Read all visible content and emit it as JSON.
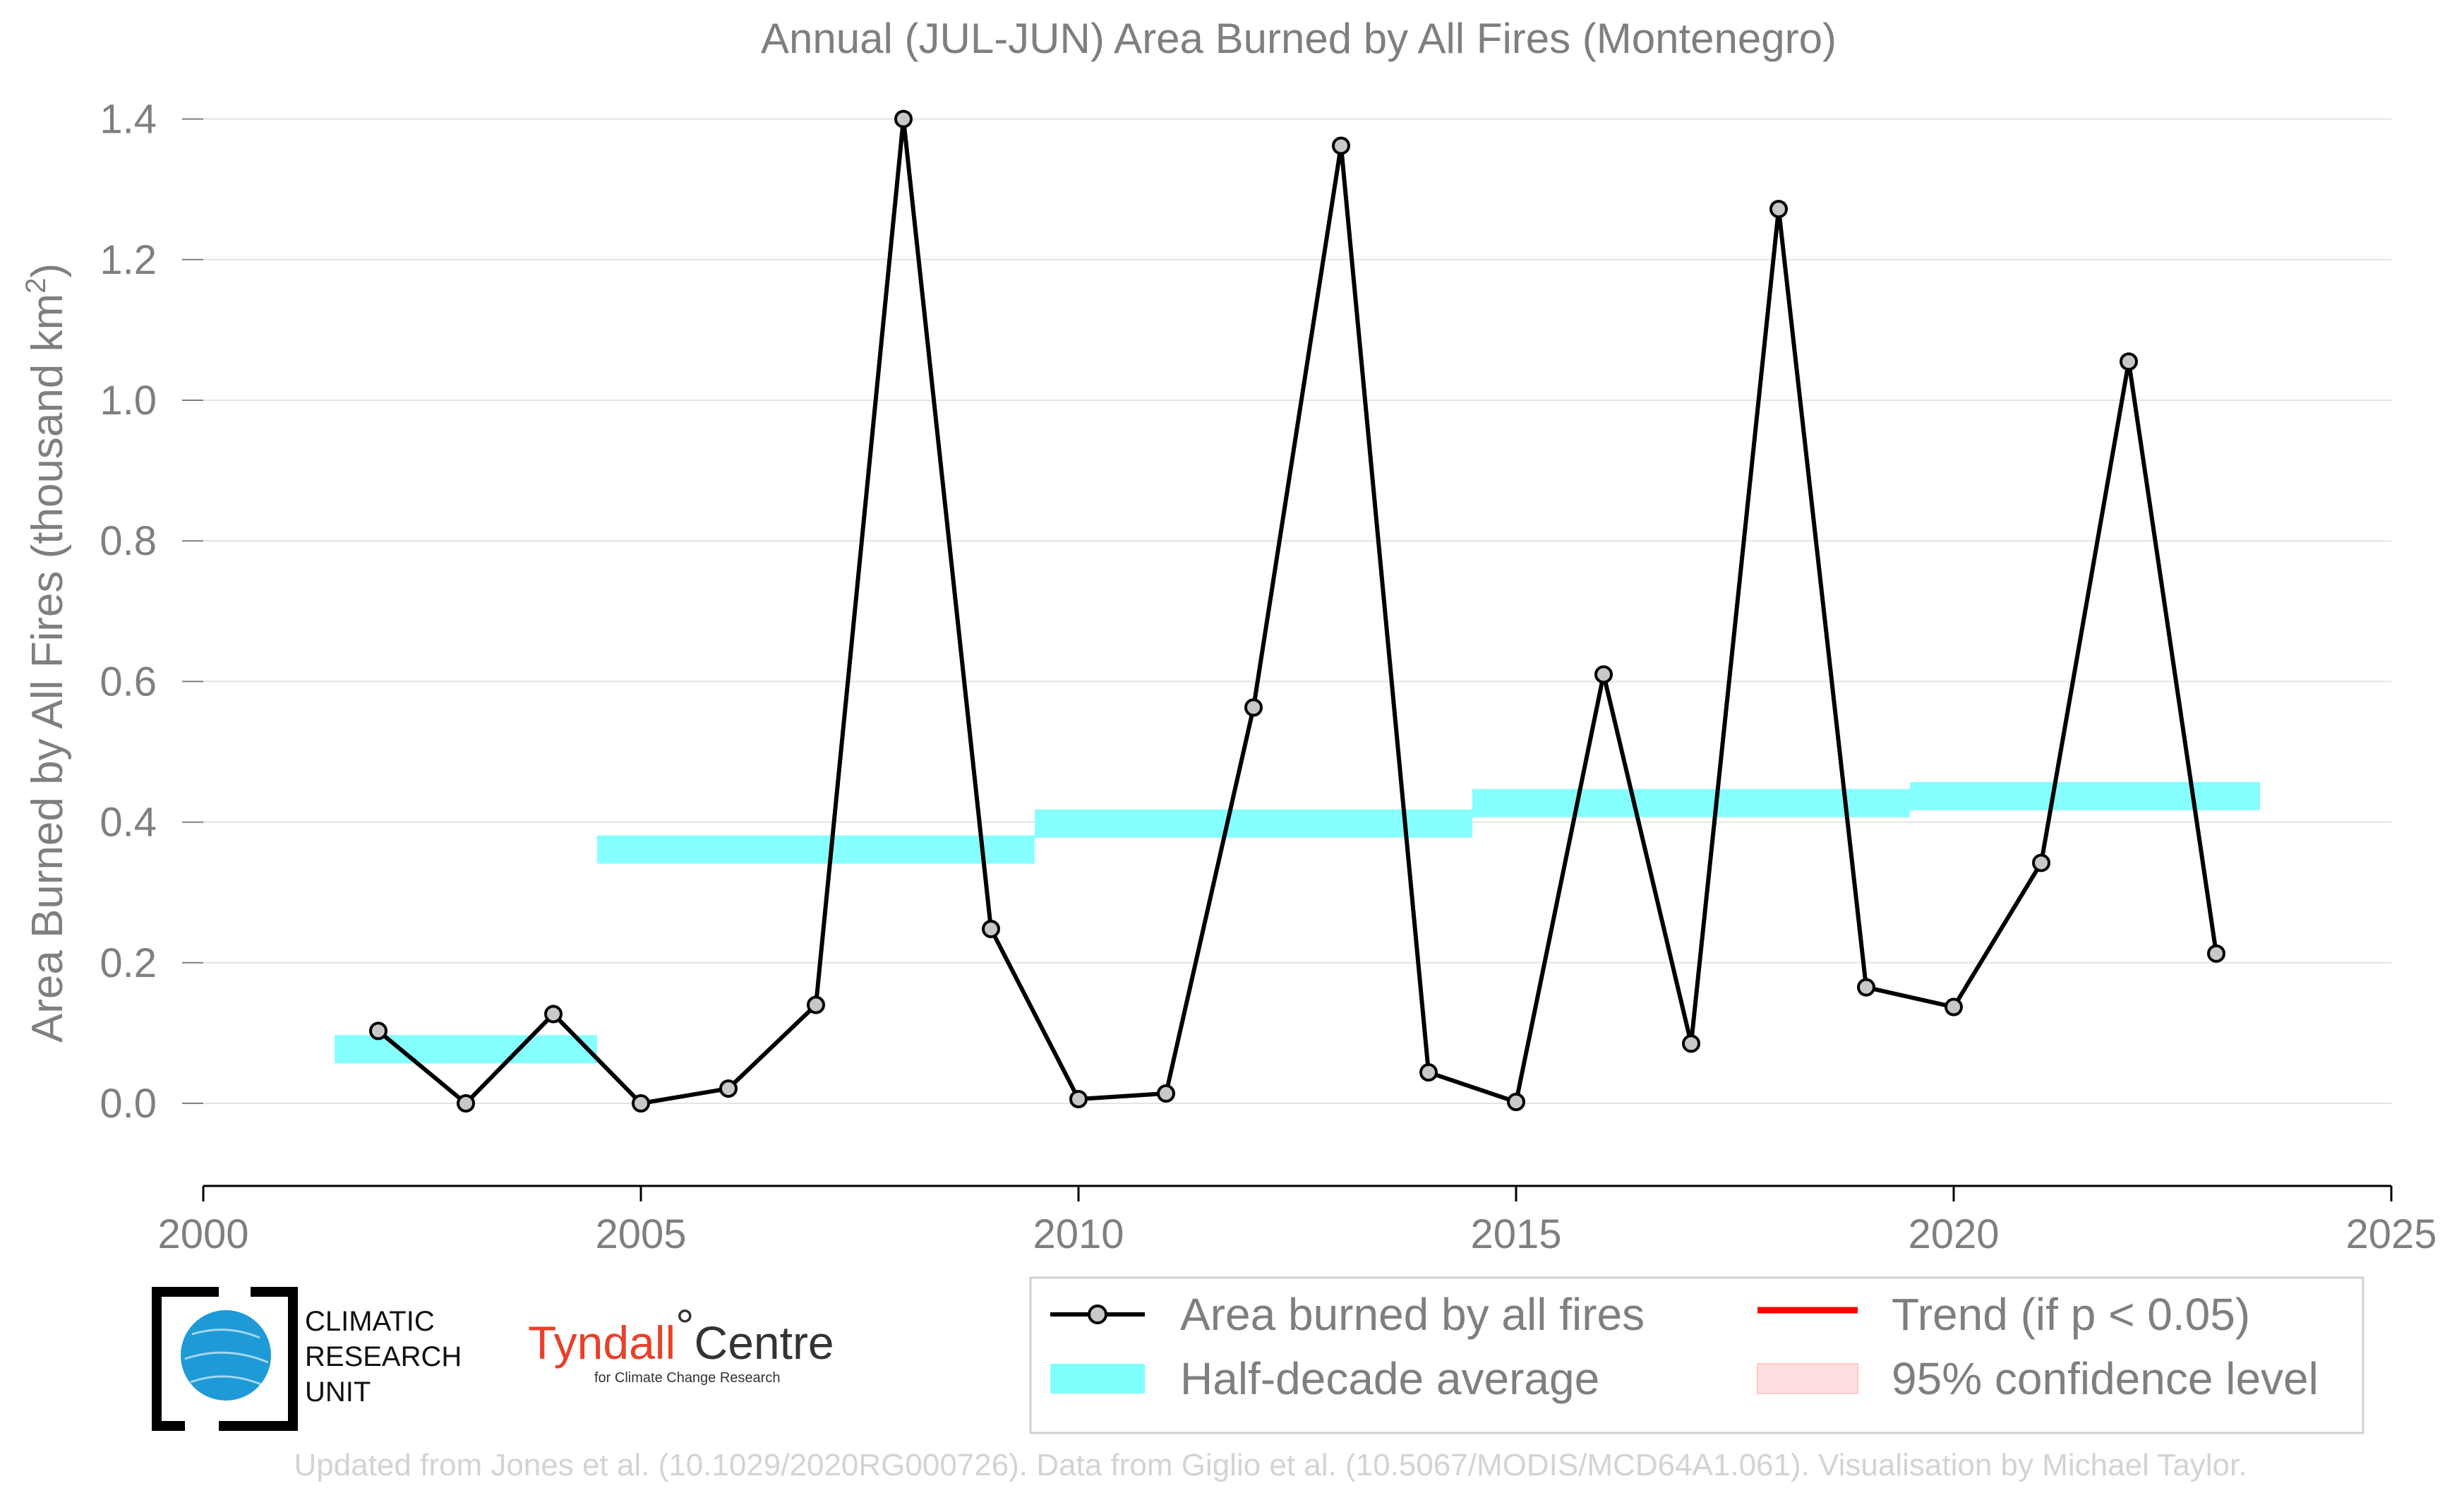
{
  "chart_data": {
    "type": "line",
    "title": "Annual (JUL-JUN) Area Burned by All Fires (Montenegro)",
    "ylabel_main": "Area Burned by All Fires (thousand km",
    "ylabel_sup": "2",
    "ylabel_end": ")",
    "xlim": [
      2000,
      2025
    ],
    "ylim": [
      -0.1,
      1.45
    ],
    "x_ticks": [
      2000,
      2005,
      2010,
      2015,
      2020,
      2025
    ],
    "y_ticks": [
      0.0,
      0.2,
      0.4,
      0.6,
      0.8,
      1.0,
      1.2,
      1.4
    ],
    "y_tick_labels": [
      "0.0",
      "0.2",
      "0.4",
      "0.6",
      "0.8",
      "1.0",
      "1.2",
      "1.4"
    ],
    "grid": "horizontal",
    "legend_position": "bottom",
    "series": [
      {
        "name": "Area burned by all fires",
        "color": "#000000",
        "marker_fill": "#c8c8c8",
        "x": [
          2002,
          2003,
          2004,
          2005,
          2006,
          2007,
          2008,
          2009,
          2010,
          2011,
          2012,
          2013,
          2014,
          2015,
          2016,
          2017,
          2018,
          2019,
          2020,
          2021,
          2022,
          2023
        ],
        "y": [
          0.103,
          0.0,
          0.127,
          0.0,
          0.021,
          0.14,
          1.4,
          0.248,
          0.006,
          0.014,
          0.563,
          1.362,
          0.044,
          0.002,
          0.61,
          0.085,
          1.272,
          0.165,
          0.137,
          0.342,
          1.055,
          0.213
        ]
      }
    ],
    "half_decade_average": {
      "name": "Half-decade average",
      "color": "#80ffff",
      "segments": [
        {
          "x0": 2001.5,
          "x1": 2004.5,
          "y": 0.077
        },
        {
          "x0": 2004.5,
          "x1": 2009.5,
          "y": 0.361
        },
        {
          "x0": 2009.5,
          "x1": 2014.5,
          "y": 0.398
        },
        {
          "x0": 2014.5,
          "x1": 2019.5,
          "y": 0.427
        },
        {
          "x0": 2019.5,
          "x1": 2023.5,
          "y": 0.437
        }
      ]
    },
    "trend": {
      "name": "Trend (if p < 0.05)",
      "color": "#ff0000"
    },
    "confidence": {
      "name": "95% confidence level",
      "color": "#ffdddd"
    }
  },
  "logos": {
    "cru_line1": "CLIMATIC",
    "cru_line2": "RESEARCH",
    "cru_line3": "UNIT",
    "tyndall_name": "Tyndall",
    "tyndall_degree": "°",
    "tyndall_centre": "Centre",
    "tyndall_sub": "for Climate Change Research"
  },
  "credit": "Updated from Jones et al. (10.1029/2020RG000726). Data from Giglio et al. (10.5067/MODIS/MCD64A1.061). Visualisation by Michael Taylor."
}
